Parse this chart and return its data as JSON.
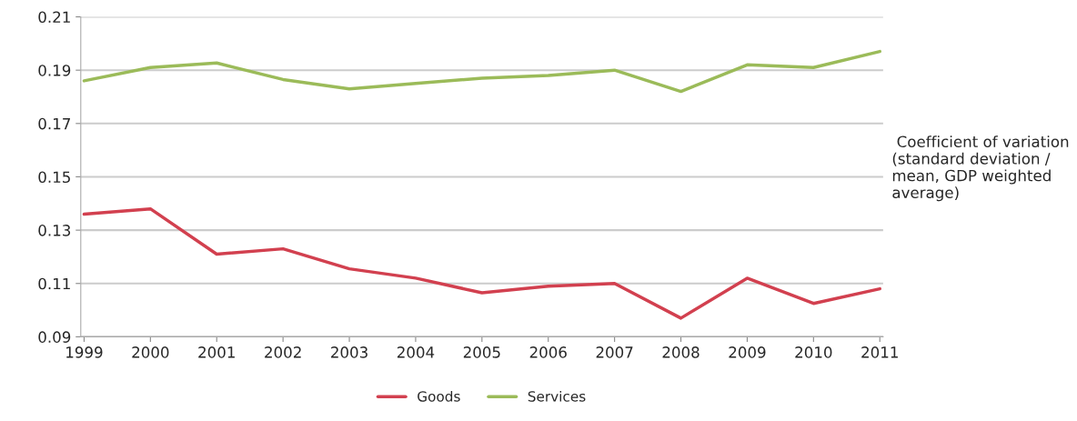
{
  "chart_data": {
    "type": "line",
    "categories": [
      "1999",
      "2000",
      "2001",
      "2002",
      "2003",
      "2004",
      "2005",
      "2006",
      "2007",
      "2008",
      "2009",
      "2010",
      "2011"
    ],
    "series": [
      {
        "name": "Goods",
        "color": "#d2404f",
        "values": [
          0.136,
          0.138,
          0.121,
          0.123,
          0.1155,
          0.112,
          0.1065,
          0.109,
          0.11,
          0.097,
          0.112,
          0.1025,
          0.108
        ]
      },
      {
        "name": "Services",
        "color": "#9bbb59",
        "values": [
          0.186,
          0.191,
          0.1927,
          0.1865,
          0.183,
          0.185,
          0.187,
          0.188,
          0.19,
          0.182,
          0.192,
          0.191,
          0.197
        ]
      }
    ],
    "ylim": [
      0.09,
      0.21
    ],
    "yticks": [
      0.09,
      0.11,
      0.13,
      0.15,
      0.17,
      0.19,
      0.21
    ],
    "grid": "y",
    "legend": "bottom",
    "marker": "none",
    "line_style": "solid",
    "annotations": [
      " Coefficient of variation (standard deviation / mean, GDP weighted average)"
    ]
  }
}
